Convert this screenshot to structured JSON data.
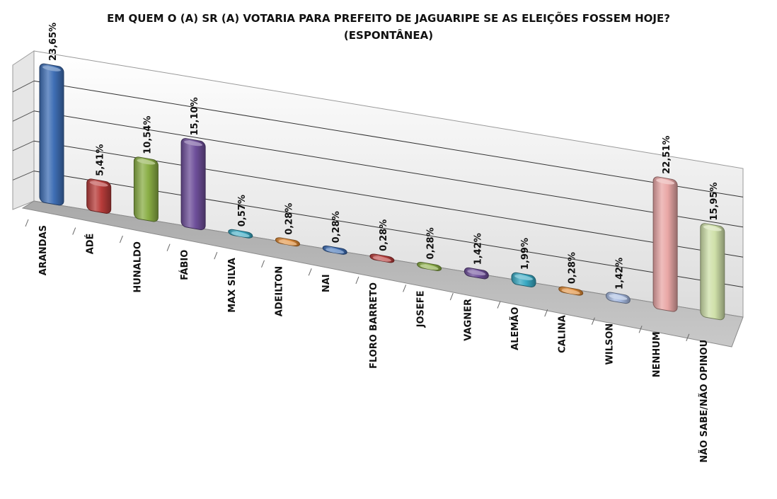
{
  "chart_data": {
    "type": "bar",
    "title": "EM QUEM O (A) SR (A) VOTARIA PARA PREFEITO DE JAGUARIPE SE AS ELEIÇÕES FOSSEM HOJE?",
    "subtitle": "(ESPONTÂNEA)",
    "categories": [
      "ARANDAS",
      "ADÉ",
      "HUNALDO",
      "FÁBIO",
      "MAX SILVA",
      "ADEILTON",
      "NAI",
      "FLORO BARRETO",
      "JOSEFE",
      "VAGNER",
      "ALEMÃO",
      "CALINA",
      "WILSON",
      "NENHUM",
      "NÃO SABE/NÃO OPINOU"
    ],
    "values": [
      23.65,
      5.41,
      10.54,
      15.1,
      0.57,
      0.28,
      0.28,
      0.28,
      0.28,
      1.42,
      1.99,
      0.28,
      1.42,
      22.51,
      15.95
    ],
    "value_labels": [
      "23,65%",
      "5,41%",
      "10,54%",
      "15,10%",
      "0,57%",
      "0,28%",
      "0,28%",
      "0,28%",
      "0,28%",
      "1,42%",
      "1,99%",
      "0,28%",
      "1,42%",
      "22,51%",
      "15,95%"
    ],
    "colors": [
      "#3f6fb5",
      "#b83c3a",
      "#8aae45",
      "#6e4f9a",
      "#38a8c2",
      "#e08a35",
      "#3f6fb5",
      "#b83c3a",
      "#8aae45",
      "#6e4f9a",
      "#38a8c2",
      "#e08a35",
      "#a5b9e0",
      "#e9a7a6",
      "#cfe0a9"
    ],
    "ylim": [
      0,
      25
    ],
    "grid": true,
    "legend": "none"
  }
}
